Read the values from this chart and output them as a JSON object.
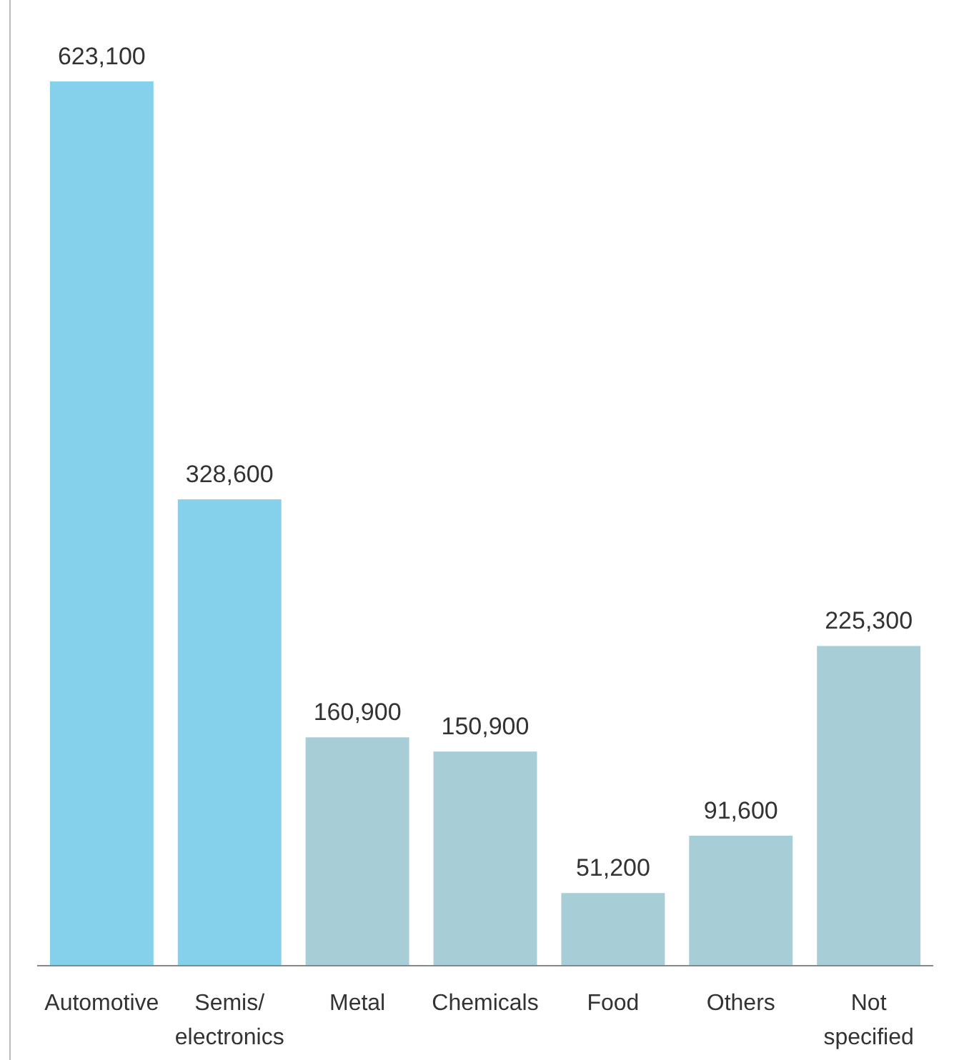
{
  "chart_data": {
    "type": "bar",
    "categories": [
      "Automotive",
      "Semis/ electronics",
      "Metal",
      "Chemicals",
      "Food",
      "Others",
      "Not specified"
    ],
    "values": [
      623100,
      328600,
      160900,
      150900,
      51200,
      91600,
      225300
    ],
    "colors": [
      "#85d0ea",
      "#85d0ea",
      "#a7cdd6",
      "#a7cdd6",
      "#a7cdd6",
      "#a7cdd6",
      "#a7cdd6"
    ],
    "value_labels": [
      "623,100",
      "328,600",
      "160,900",
      "150,900",
      "51,200",
      "91,600",
      "225,300"
    ]
  }
}
